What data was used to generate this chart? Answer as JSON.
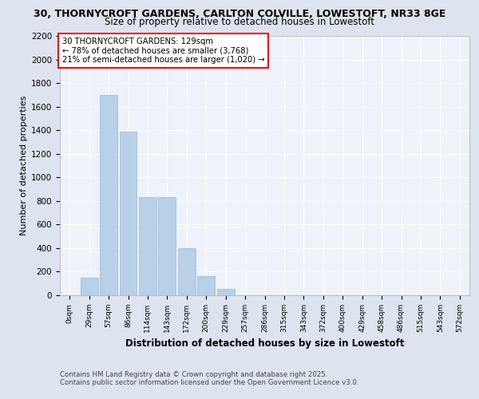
{
  "title_line1": "30, THORNYCROFT GARDENS, CARLTON COLVILLE, LOWESTOFT, NR33 8GE",
  "title_line2": "Size of property relative to detached houses in Lowestoft",
  "xlabel": "Distribution of detached houses by size in Lowestoft",
  "ylabel": "Number of detached properties",
  "categories": [
    "0sqm",
    "29sqm",
    "57sqm",
    "86sqm",
    "114sqm",
    "143sqm",
    "172sqm",
    "200sqm",
    "229sqm",
    "257sqm",
    "286sqm",
    "315sqm",
    "343sqm",
    "372sqm",
    "400sqm",
    "429sqm",
    "458sqm",
    "486sqm",
    "515sqm",
    "543sqm",
    "572sqm"
  ],
  "values": [
    0,
    150,
    1700,
    1390,
    830,
    830,
    400,
    160,
    55,
    0,
    0,
    0,
    0,
    0,
    0,
    0,
    0,
    0,
    0,
    0,
    0
  ],
  "bar_color": "#b8d0e8",
  "bar_edge_color": "#9ab8d8",
  "annotation_text_line1": "30 THORNYCROFT GARDENS: 129sqm",
  "annotation_text_line2": "← 78% of detached houses are smaller (3,768)",
  "annotation_text_line3": "21% of semi-detached houses are larger (1,020) →",
  "ylim": [
    0,
    2200
  ],
  "yticks": [
    0,
    200,
    400,
    600,
    800,
    1000,
    1200,
    1400,
    1600,
    1800,
    2000,
    2200
  ],
  "background_color": "#dde4f0",
  "plot_background_color": "#eef2fa",
  "grid_color": "#ffffff",
  "footnote_line1": "Contains HM Land Registry data © Crown copyright and database right 2025.",
  "footnote_line2": "Contains public sector information licensed under the Open Government Licence v3.0."
}
